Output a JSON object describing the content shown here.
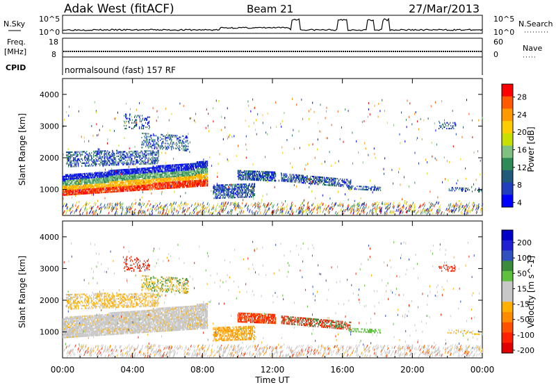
{
  "header": {
    "station": "Adak West (fitACF)",
    "beam": "Beam 21",
    "date": "27/Mar/2013"
  },
  "params": {
    "nsky_label": "N.Sky",
    "nsky_ticks": [
      "10^5",
      "10^0"
    ],
    "nsearch_label": "N.Search",
    "freq_label": "Freq.",
    "freq_unit": "[MHz]",
    "freq_ticks": [
      "18",
      "8"
    ],
    "nave_label": "Nave",
    "nave_ticks": [
      "60",
      "0"
    ],
    "cpid_label": "CPID",
    "cpid_text": "normalsound (fast) 157 RF"
  },
  "panels": {
    "power_ylabel": "Slant Range [km]",
    "velocity_ylabel": "Slant Range [km]",
    "xlabel": "Time UT"
  },
  "colorbars": {
    "power": {
      "label": "Power [dB]",
      "ticks": [
        "28",
        "24",
        "20",
        "16",
        "12",
        "8",
        "4"
      ],
      "colors": [
        "#ff0000",
        "#ff5a00",
        "#ff9900",
        "#ffcc00",
        "#c8e000",
        "#80c080",
        "#2e8b57",
        "#205a7a",
        "#1f3fbf",
        "#0000ff"
      ]
    },
    "velocity": {
      "label": "Velocity [m s^-1]",
      "ticks": [
        "200",
        "100",
        "50",
        "15",
        "-15",
        "-50",
        "-100",
        "-200"
      ],
      "colors": [
        "#0000c8",
        "#2020d0",
        "#3050c0",
        "#3c8a3c",
        "#5fbf3f",
        "#c8c8c8",
        "#c8c8c8",
        "#ffb000",
        "#ff8c00",
        "#ff5000",
        "#ff2000",
        "#e00000"
      ]
    }
  },
  "chart_data": {
    "type": "heatmap",
    "x": [
      "00:00",
      "04:00",
      "08:00",
      "12:00",
      "16:00",
      "20:00",
      "00:00"
    ],
    "y_ticks": [
      1000,
      2000,
      3000,
      4000
    ],
    "ylim": [
      180,
      4500
    ],
    "xlim_hours": [
      0,
      24
    ],
    "series": [
      {
        "name": "Power [dB]",
        "crange": [
          0,
          30
        ]
      },
      {
        "name": "Velocity [m s^-1]",
        "crange": [
          -200,
          200
        ]
      }
    ]
  },
  "colors": {
    "nsky_line": "#000000",
    "frame": "#000000"
  }
}
